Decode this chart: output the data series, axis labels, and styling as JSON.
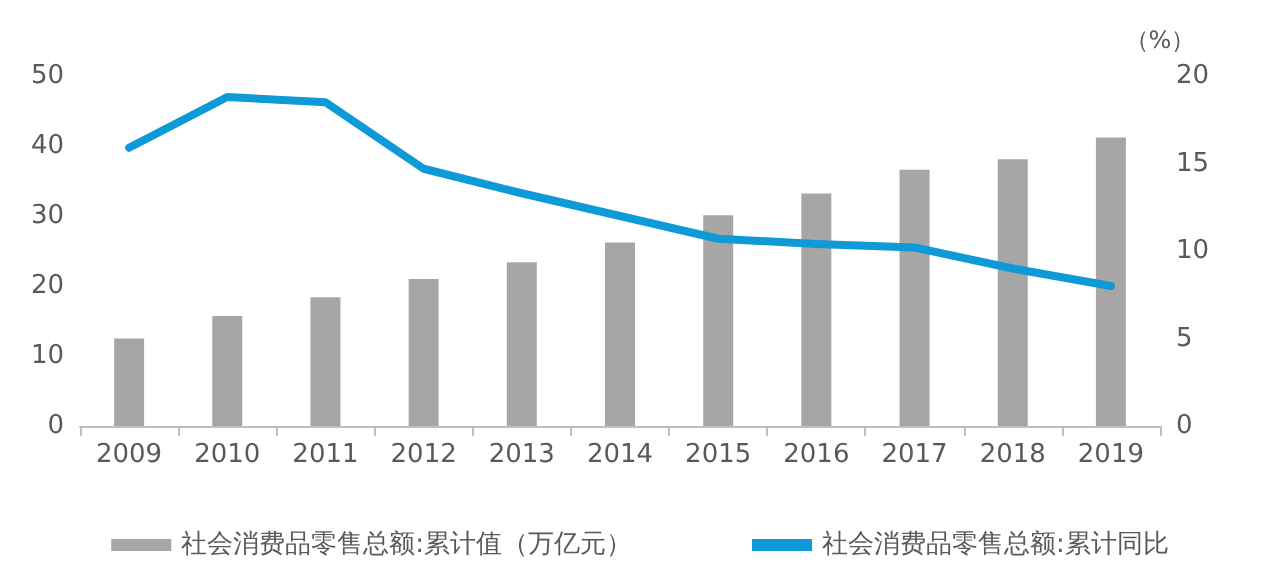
{
  "chart_data": {
    "type": "bar",
    "categories": [
      "2009",
      "2010",
      "2011",
      "2012",
      "2013",
      "2014",
      "2015",
      "2016",
      "2017",
      "2018",
      "2019"
    ],
    "series": [
      {
        "name": "社会消费品零售总额:累计值（万亿元）",
        "color": "#a6a6a6",
        "values": [
          12.5,
          15.7,
          18.4,
          21.0,
          23.4,
          26.2,
          30.1,
          33.2,
          36.6,
          38.1,
          41.2
        ]
      },
      {
        "name": "社会消费品零售总额:累计同比",
        "type": "line",
        "axis": "y2",
        "color": "#0e9ad7",
        "marker": "none",
        "values": [
          15.9,
          18.8,
          18.5,
          14.7,
          13.3,
          12.0,
          10.7,
          10.4,
          10.2,
          9.0,
          8.0
        ]
      }
    ],
    "ylim": [
      0,
      50
    ],
    "yticks": [
      0,
      10,
      20,
      30,
      40,
      50
    ],
    "y2label": "（%）",
    "y2lim": [
      0,
      20
    ],
    "y2ticks": [
      0,
      5,
      10,
      15,
      20
    ],
    "grid": false,
    "legend": "bottom"
  }
}
